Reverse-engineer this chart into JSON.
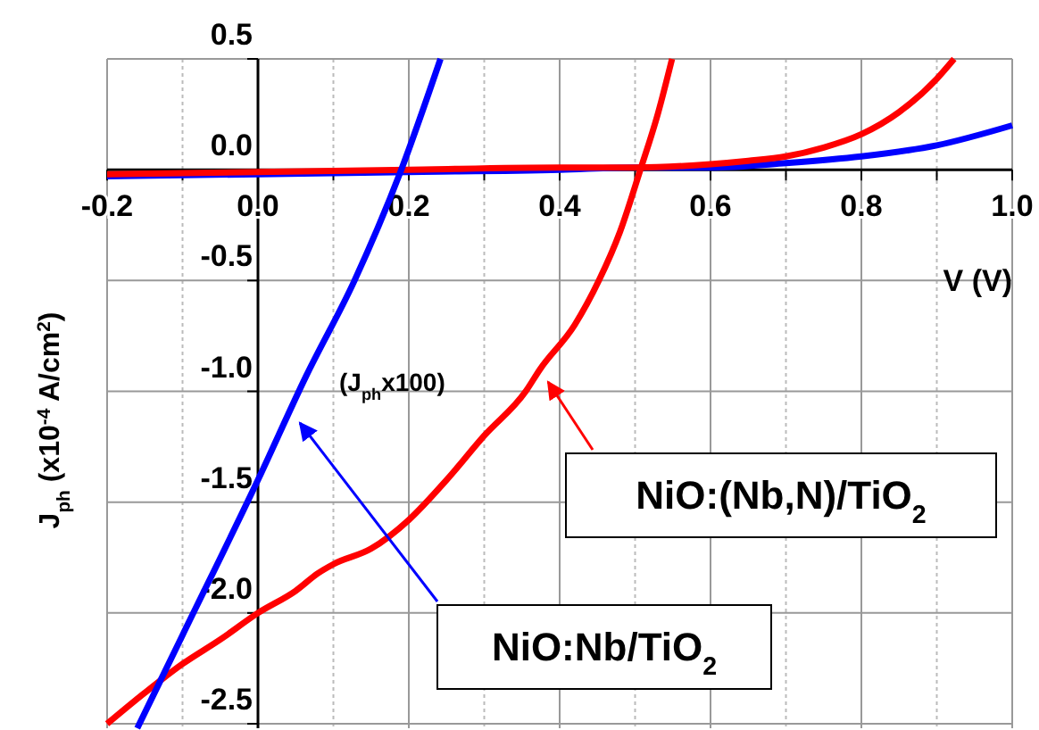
{
  "chart_data": {
    "type": "line",
    "xlabel": "V (V)",
    "ylabel": "J$_{ph}$  (x10$^{-4}$ A/cm$^{2}$)",
    "xlim": [
      -0.2,
      1.0
    ],
    "ylim": [
      -2.52,
      0.5
    ],
    "xticks": [
      -0.2,
      {
        "value": -0.1,
        "label": null
      },
      "0.0",
      {
        "value": 0.1,
        "label": null
      },
      0.2,
      {
        "value": 0.3,
        "label": null
      },
      0.4,
      {
        "value": 0.5,
        "label": null
      },
      0.6,
      {
        "value": 0.7,
        "label": null
      },
      0.8,
      {
        "value": 0.9,
        "label": null
      },
      "1.0"
    ],
    "yticks": [
      -2.5,
      "-2.0",
      -1.5,
      "-1.0",
      -0.5,
      "0.0",
      0.5
    ],
    "grid": true,
    "line_style": "solid",
    "marker": "none",
    "annotations": [
      "(J$_{ph}$x100)"
    ],
    "series": [
      {
        "color": "#0000ff",
        "x": [
          -0.2,
          0,
          0.2,
          0.4,
          0.5,
          0.6,
          0.7,
          0.8,
          0.9,
          1.0
        ],
        "values": [
          -0.03,
          -0.02,
          -0.01,
          0,
          0.01,
          0.01,
          0.03,
          0.06,
          0.11,
          0.2
        ]
      },
      {
        "color": "#ff0000",
        "x": [
          -0.2,
          0,
          0.2,
          0.4,
          0.5,
          0.6,
          0.65,
          0.7,
          0.75,
          0.8,
          0.85,
          0.9,
          0.923
        ],
        "values": [
          -0.02,
          -0.01,
          0,
          0.01,
          0.01,
          0.025,
          0.04,
          0.06,
          0.1,
          0.16,
          0.26,
          0.41,
          0.5
        ]
      },
      {
        "name": "NiO:(Nb,N)/TiO$_{2}$",
        "color": "#ff0000",
        "x": [
          -0.2,
          -0.15,
          -0.1,
          -0.05,
          0,
          0.05,
          0.08,
          0.1,
          0.15,
          0.2,
          0.25,
          0.3,
          0.355,
          0.374,
          0.42,
          0.452,
          0.48,
          0.507,
          0.53,
          0.549
        ],
        "values": [
          -2.5,
          -2.36,
          -2.23,
          -2.12,
          -2.0,
          -1.9,
          -1.82,
          -1.78,
          -1.71,
          -1.58,
          -1.4,
          -1.2,
          -1.0,
          -0.9,
          -0.7,
          -0.5,
          -0.28,
          0,
          0.25,
          0.5
        ]
      },
      {
        "name": "NiO:Nb/TiO$_{2}$",
        "color": "#0000ff",
        "x": [
          -0.16,
          -0.1,
          0,
          0.064,
          0.128,
          0.19,
          0.242
        ],
        "values": [
          -2.52,
          -2.1,
          -1.4,
          -0.93,
          -0.5,
          0,
          0.5
        ]
      }
    ]
  }
}
